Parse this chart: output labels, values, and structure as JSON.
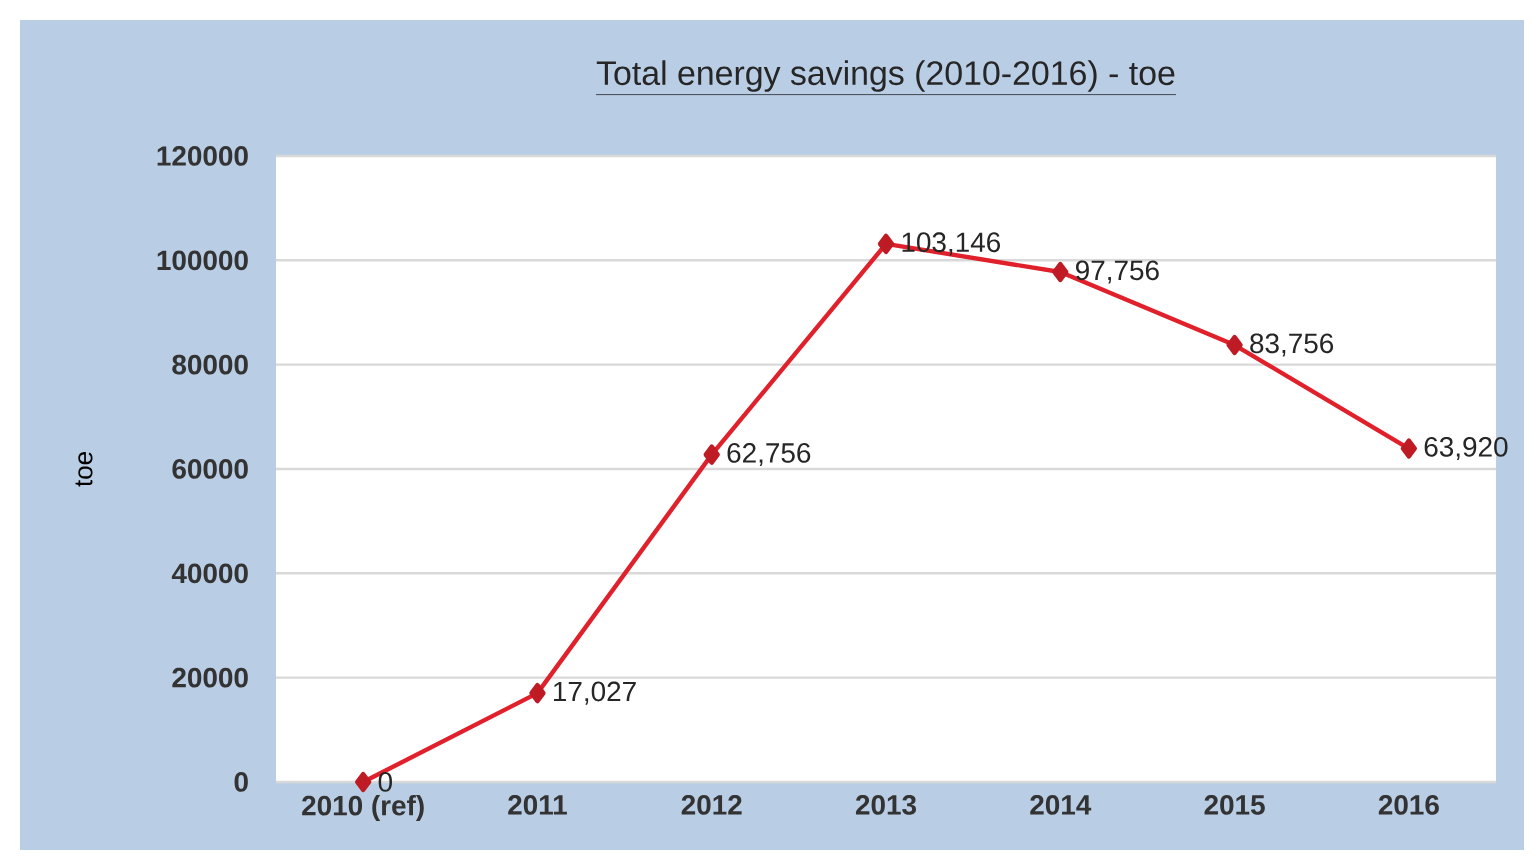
{
  "chart_data": {
    "type": "line",
    "title": "Total energy savings (2010-2016) - toe",
    "ylabel": "toe",
    "categories": [
      "2010 (ref)",
      "2011",
      "2012",
      "2013",
      "2014",
      "2015",
      "2016"
    ],
    "values": [
      0,
      17027,
      62756,
      103146,
      97756,
      83756,
      63920
    ],
    "value_labels": [
      "0",
      "17,027",
      "62,756",
      "103,146",
      "97,756",
      "83,756",
      "63,920"
    ],
    "color": "#e0202a",
    "ylim": [
      0,
      120000
    ],
    "yticks": [
      0,
      20000,
      40000,
      60000,
      80000,
      100000,
      120000
    ],
    "grid": "y",
    "marker": "diamond",
    "line_style": "solid"
  }
}
